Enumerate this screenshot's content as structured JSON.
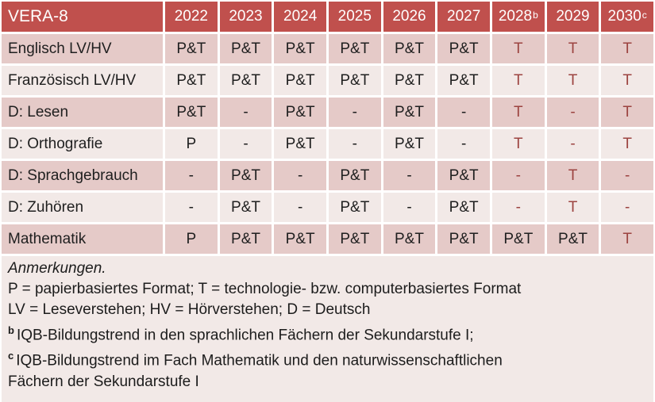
{
  "colors": {
    "header_bg": "#c0504d",
    "band_dark": "#e5cac8",
    "band_light": "#f2e9e7",
    "red_text": "#9c4340",
    "header_text": "#ffffff",
    "body_text": "#1f1f1f"
  },
  "table": {
    "corner_label": "VERA-8",
    "years": [
      {
        "label": "2022",
        "sup": ""
      },
      {
        "label": "2023",
        "sup": ""
      },
      {
        "label": "2024",
        "sup": ""
      },
      {
        "label": "2025",
        "sup": ""
      },
      {
        "label": "2026",
        "sup": ""
      },
      {
        "label": "2027",
        "sup": ""
      },
      {
        "label": "2028",
        "sup": "b"
      },
      {
        "label": "2029",
        "sup": ""
      },
      {
        "label": "2030",
        "sup": "c"
      }
    ],
    "rows": [
      {
        "label": "Englisch LV/HV",
        "cells": [
          {
            "v": "P&T",
            "red": false
          },
          {
            "v": "P&T",
            "red": false
          },
          {
            "v": "P&T",
            "red": false
          },
          {
            "v": "P&T",
            "red": false
          },
          {
            "v": "P&T",
            "red": false
          },
          {
            "v": "P&T",
            "red": false
          },
          {
            "v": "T",
            "red": true
          },
          {
            "v": "T",
            "red": true
          },
          {
            "v": "T",
            "red": true
          }
        ]
      },
      {
        "label": "Französisch LV/HV",
        "cells": [
          {
            "v": "P&T",
            "red": false
          },
          {
            "v": "P&T",
            "red": false
          },
          {
            "v": "P&T",
            "red": false
          },
          {
            "v": "P&T",
            "red": false
          },
          {
            "v": "P&T",
            "red": false
          },
          {
            "v": "P&T",
            "red": false
          },
          {
            "v": "T",
            "red": true
          },
          {
            "v": "T",
            "red": true
          },
          {
            "v": "T",
            "red": true
          }
        ]
      },
      {
        "label": "D: Lesen",
        "cells": [
          {
            "v": "P&T",
            "red": false
          },
          {
            "v": "-",
            "red": false
          },
          {
            "v": "P&T",
            "red": false
          },
          {
            "v": "-",
            "red": false
          },
          {
            "v": "P&T",
            "red": false
          },
          {
            "v": "-",
            "red": false
          },
          {
            "v": "T",
            "red": true
          },
          {
            "v": "-",
            "red": true
          },
          {
            "v": "T",
            "red": true
          }
        ]
      },
      {
        "label": "D: Orthografie",
        "cells": [
          {
            "v": "P",
            "red": false
          },
          {
            "v": "-",
            "red": false
          },
          {
            "v": "P&T",
            "red": false
          },
          {
            "v": "-",
            "red": false
          },
          {
            "v": "P&T",
            "red": false
          },
          {
            "v": "-",
            "red": false
          },
          {
            "v": "T",
            "red": true
          },
          {
            "v": "-",
            "red": true
          },
          {
            "v": "T",
            "red": true
          }
        ]
      },
      {
        "label": "D: Sprachgebrauch",
        "cells": [
          {
            "v": "-",
            "red": false
          },
          {
            "v": "P&T",
            "red": false
          },
          {
            "v": "-",
            "red": false
          },
          {
            "v": "P&T",
            "red": false
          },
          {
            "v": "-",
            "red": false
          },
          {
            "v": "P&T",
            "red": false
          },
          {
            "v": "-",
            "red": true
          },
          {
            "v": "T",
            "red": true
          },
          {
            "v": "-",
            "red": true
          }
        ]
      },
      {
        "label": "D: Zuhören",
        "cells": [
          {
            "v": "-",
            "red": false
          },
          {
            "v": "P&T",
            "red": false
          },
          {
            "v": "-",
            "red": false
          },
          {
            "v": "P&T",
            "red": false
          },
          {
            "v": "-",
            "red": false
          },
          {
            "v": "P&T",
            "red": false
          },
          {
            "v": "-",
            "red": true
          },
          {
            "v": "T",
            "red": true
          },
          {
            "v": "-",
            "red": true
          }
        ]
      },
      {
        "label": "Mathematik",
        "cells": [
          {
            "v": "P",
            "red": false
          },
          {
            "v": "P&T",
            "red": false
          },
          {
            "v": "P&T",
            "red": false
          },
          {
            "v": "P&T",
            "red": false
          },
          {
            "v": "P&T",
            "red": false
          },
          {
            "v": "P&T",
            "red": false
          },
          {
            "v": "P&T",
            "red": false
          },
          {
            "v": "P&T",
            "red": false
          },
          {
            "v": "T",
            "red": true
          }
        ]
      }
    ]
  },
  "notes": {
    "heading": "Anmerkungen.",
    "legend_lines": [
      "P = papierbasiertes Format; T = technologie- bzw. computerbasiertes Format",
      "LV = Leseverstehen; HV = Hörverstehen; D = Deutsch"
    ],
    "footnotes": [
      {
        "marker": "b",
        "lines": [
          "IQB-Bildungstrend in den sprachlichen Fächern der Sekundarstufe I;"
        ]
      },
      {
        "marker": "c",
        "lines": [
          "IQB-Bildungstrend im Fach Mathematik und den naturwissenschaftlichen",
          "Fächern der Sekundarstufe I"
        ]
      }
    ]
  }
}
